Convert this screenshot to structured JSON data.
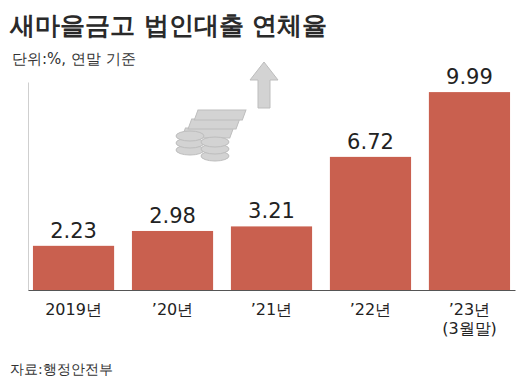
{
  "chart_data": {
    "type": "bar",
    "title": "새마을금고 법인대출 연체율",
    "subtitle": "단위:%, 연말 기준",
    "source": "자료:행정안전부",
    "categories": [
      "2019년",
      "’20년",
      "’21년",
      "’22년",
      "’23년\n(3월말)"
    ],
    "values": [
      2.23,
      2.98,
      3.21,
      6.72,
      9.99
    ],
    "color": "#c9604f",
    "ylim": [
      0,
      10.5
    ],
    "data_labels": true,
    "tick_labels": "x",
    "grid": false
  }
}
